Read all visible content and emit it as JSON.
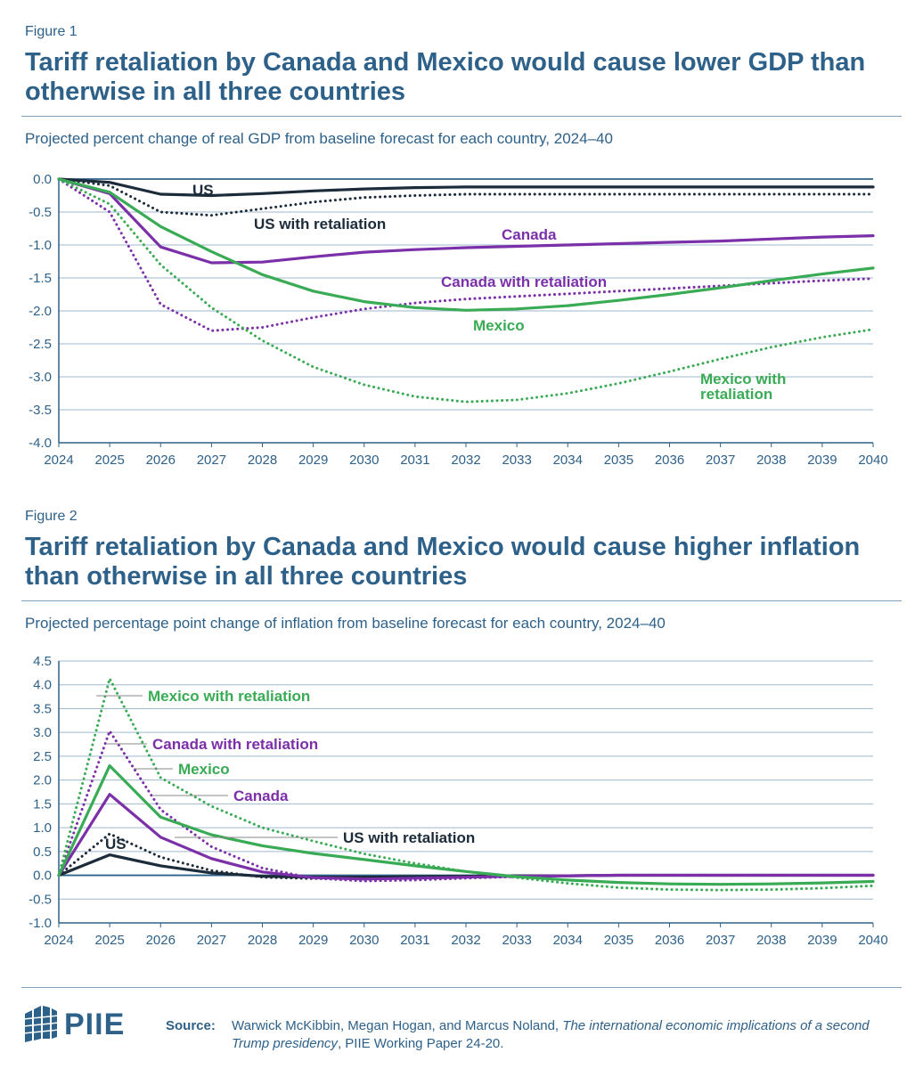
{
  "figures": [
    {
      "label": "Figure 1",
      "title": "Tariff retaliation by Canada and Mexico would cause lower GDP than otherwise in all three countries",
      "subtitle": "Projected percent change of real GDP from baseline forecast for each country, 2024–40"
    },
    {
      "label": "Figure 2",
      "title": "Tariff retaliation by Canada and Mexico would cause higher inflation than otherwise in all three countries",
      "subtitle": "Projected percentage point change of inflation from baseline forecast for each country, 2024–40"
    }
  ],
  "colors": {
    "us": "#1c2b3a",
    "canada": "#7b2fa8",
    "mexico": "#3aab55",
    "axis": "#2e6189",
    "grid": "#9fb9cf"
  },
  "chart_data": [
    {
      "type": "line",
      "title": "Tariff retaliation by Canada and Mexico would cause lower GDP than otherwise in all three countries",
      "x": [
        2024,
        2025,
        2026,
        2027,
        2028,
        2029,
        2030,
        2031,
        2032,
        2033,
        2034,
        2035,
        2036,
        2037,
        2038,
        2039,
        2040
      ],
      "xlim": [
        2024,
        2040
      ],
      "ylim": [
        -4.0,
        0.0
      ],
      "yticks": [
        "0.0",
        "-0.5",
        "-1.0",
        "-1.5",
        "-2.0",
        "-2.5",
        "-3.0",
        "-3.5",
        "-4.0"
      ],
      "grid": true,
      "series": [
        {
          "name": "US",
          "color_key": "us",
          "dashed": false,
          "values": [
            0,
            -0.05,
            -0.23,
            -0.25,
            -0.22,
            -0.18,
            -0.15,
            -0.13,
            -0.12,
            -0.12,
            -0.12,
            -0.12,
            -0.12,
            -0.12,
            -0.12,
            -0.12,
            -0.12
          ]
        },
        {
          "name": "US with retaliation",
          "color_key": "us",
          "dashed": true,
          "values": [
            0,
            -0.1,
            -0.5,
            -0.55,
            -0.45,
            -0.35,
            -0.28,
            -0.25,
            -0.23,
            -0.23,
            -0.23,
            -0.23,
            -0.23,
            -0.23,
            -0.23,
            -0.23,
            -0.23
          ]
        },
        {
          "name": "Canada",
          "color_key": "canada",
          "dashed": false,
          "values": [
            0,
            -0.22,
            -1.03,
            -1.27,
            -1.26,
            -1.18,
            -1.11,
            -1.07,
            -1.04,
            -1.02,
            -1.0,
            -0.98,
            -0.96,
            -0.94,
            -0.91,
            -0.88,
            -0.86
          ]
        },
        {
          "name": "Canada with retaliation",
          "color_key": "canada",
          "dashed": true,
          "values": [
            0,
            -0.5,
            -1.9,
            -2.3,
            -2.25,
            -2.1,
            -1.97,
            -1.88,
            -1.82,
            -1.78,
            -1.74,
            -1.7,
            -1.66,
            -1.62,
            -1.58,
            -1.54,
            -1.51
          ]
        },
        {
          "name": "Mexico",
          "color_key": "mexico",
          "dashed": false,
          "values": [
            0,
            -0.2,
            -0.72,
            -1.1,
            -1.45,
            -1.7,
            -1.86,
            -1.95,
            -1.99,
            -1.97,
            -1.92,
            -1.84,
            -1.75,
            -1.65,
            -1.54,
            -1.44,
            -1.35
          ]
        },
        {
          "name": "Mexico with retaliation",
          "color_key": "mexico",
          "dashed": true,
          "values": [
            0,
            -0.38,
            -1.3,
            -1.95,
            -2.45,
            -2.85,
            -3.12,
            -3.3,
            -3.38,
            -3.35,
            -3.25,
            -3.1,
            -2.92,
            -2.73,
            -2.55,
            -2.4,
            -2.28
          ]
        }
      ],
      "annotations": [
        {
          "text": "US",
          "color_key": "us"
        },
        {
          "text": "US with retaliation",
          "color_key": "us"
        },
        {
          "text": "Canada",
          "color_key": "canada"
        },
        {
          "text": "Canada with retaliation",
          "color_key": "canada"
        },
        {
          "text": "Mexico",
          "color_key": "mexico"
        },
        {
          "text": "Mexico with",
          "color_key": "mexico"
        },
        {
          "text": "retaliation",
          "color_key": "mexico"
        }
      ]
    },
    {
      "type": "line",
      "title": "Tariff retaliation by Canada and Mexico would cause higher inflation than otherwise in all three countries",
      "x": [
        2024,
        2025,
        2026,
        2027,
        2028,
        2029,
        2030,
        2031,
        2032,
        2033,
        2034,
        2035,
        2036,
        2037,
        2038,
        2039,
        2040
      ],
      "xlim": [
        2024,
        2040
      ],
      "ylim": [
        -1.0,
        4.5
      ],
      "yticks": [
        "4.5",
        "4.0",
        "3.5",
        "3.0",
        "2.5",
        "2.0",
        "1.5",
        "1.0",
        "0.5",
        "0.0",
        "-0.5",
        "-1.0"
      ],
      "grid": true,
      "series": [
        {
          "name": "US",
          "color_key": "us",
          "dashed": false,
          "values": [
            0,
            0.43,
            0.2,
            0.05,
            -0.02,
            -0.04,
            -0.04,
            -0.03,
            -0.02,
            -0.01,
            -0.01,
            0,
            0,
            0,
            0,
            0,
            0
          ]
        },
        {
          "name": "US with retaliation",
          "color_key": "us",
          "dashed": true,
          "values": [
            0,
            0.87,
            0.38,
            0.1,
            -0.04,
            -0.07,
            -0.07,
            -0.05,
            -0.03,
            -0.02,
            -0.01,
            0,
            0,
            0,
            0,
            0,
            0
          ]
        },
        {
          "name": "Canada",
          "color_key": "canada",
          "dashed": false,
          "values": [
            0,
            1.7,
            0.8,
            0.35,
            0.07,
            -0.05,
            -0.08,
            -0.06,
            -0.04,
            -0.02,
            -0.01,
            0,
            0,
            0,
            0,
            0,
            0
          ]
        },
        {
          "name": "Canada with retaliation",
          "color_key": "canada",
          "dashed": true,
          "values": [
            0,
            3.03,
            1.38,
            0.6,
            0.15,
            -0.06,
            -0.12,
            -0.1,
            -0.06,
            -0.03,
            -0.01,
            0,
            0,
            0,
            0,
            0,
            0
          ]
        },
        {
          "name": "Mexico",
          "color_key": "mexico",
          "dashed": false,
          "values": [
            0,
            2.3,
            1.22,
            0.85,
            0.62,
            0.46,
            0.33,
            0.2,
            0.08,
            -0.03,
            -0.1,
            -0.15,
            -0.18,
            -0.19,
            -0.18,
            -0.16,
            -0.13
          ]
        },
        {
          "name": "Mexico with retaliation",
          "color_key": "mexico",
          "dashed": true,
          "values": [
            0,
            4.13,
            2.05,
            1.45,
            1.0,
            0.72,
            0.45,
            0.25,
            0.08,
            -0.05,
            -0.17,
            -0.26,
            -0.3,
            -0.31,
            -0.3,
            -0.27,
            -0.22
          ]
        }
      ],
      "annotations": [
        {
          "text": "Mexico with retaliation",
          "color_key": "mexico"
        },
        {
          "text": "Canada with retaliation",
          "color_key": "canada"
        },
        {
          "text": "Mexico",
          "color_key": "mexico"
        },
        {
          "text": "Canada",
          "color_key": "canada"
        },
        {
          "text": "US with retaliation",
          "color_key": "us"
        },
        {
          "text": "US",
          "color_key": "us"
        }
      ]
    }
  ],
  "footer": {
    "logo_text": "PIIE",
    "source_label": "Source:",
    "source_text": "Warwick McKibbin, Megan Hogan, and Marcus Noland,",
    "source_italic": "The international economic implications of a second Trump presidency",
    "source_tail": ", PIIE Working Paper 24-20."
  }
}
